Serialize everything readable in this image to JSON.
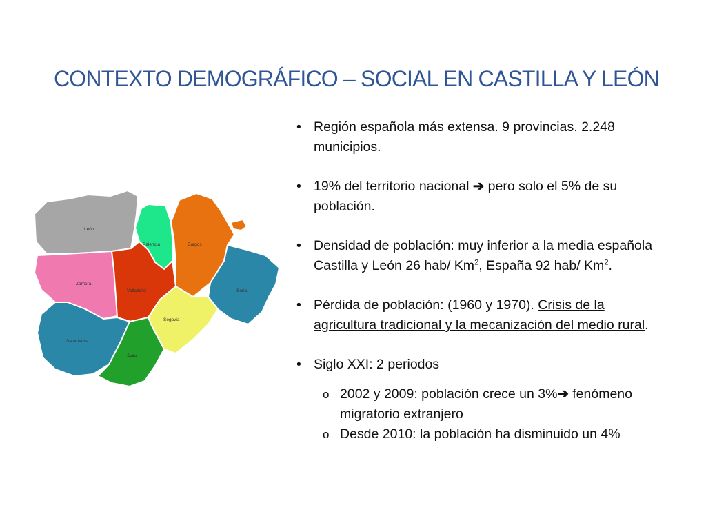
{
  "title": "CONTEXTO DEMOGRÁFICO – SOCIAL EN CASTILLA Y LEÓN",
  "map": {
    "provinces": [
      {
        "name": "León",
        "color": "#a6a6a6"
      },
      {
        "name": "Palencia",
        "color": "#1ee68a"
      },
      {
        "name": "Burgos",
        "color": "#e8720f"
      },
      {
        "name": "Zamora",
        "color": "#f07ab0"
      },
      {
        "name": "Valladolid",
        "color": "#d9370a"
      },
      {
        "name": "Soria",
        "color": "#2b87a8"
      },
      {
        "name": "Segovia",
        "color": "#eff266"
      },
      {
        "name": "Salamanca",
        "color": "#2b87a8"
      },
      {
        "name": "Ávila",
        "color": "#22a02c"
      }
    ]
  },
  "bullets": {
    "b1": {
      "strong": "Región española más extensa",
      "rest": ". 9 provincias. 2.248 municipios."
    },
    "b2": {
      "strong": "19% del territorio nacional",
      "arrow": "➔",
      "rest": " pero solo el 5% de su población."
    },
    "b3": {
      "strong": "Densidad de población",
      "text1": ": muy inferior a la media española ",
      "strong2": "Castilla y León",
      "text2": " 26 hab/ Km",
      "sup1": "2",
      "text3": ", España 92 hab/ Km",
      "sup2": "2",
      "text4": "."
    },
    "b4": {
      "strong": "Pérdida de población",
      "text1": ": (1960 y 1970). ",
      "underlined": "Crisis de la agricultura tradicional y la mecanización del medio rural",
      "text2": "."
    },
    "b5": {
      "strong": "Siglo XXI",
      "rest": ": 2 periodos"
    }
  },
  "subbullets": [
    {
      "marker": "o",
      "text": "2002 y 2009: población crece un 3%",
      "arrow": "➔",
      "text2": " fenómeno migratorio extranjero"
    },
    {
      "marker": "o",
      "text": "Desde 2010: la población ha disminuido un 4%"
    }
  ]
}
